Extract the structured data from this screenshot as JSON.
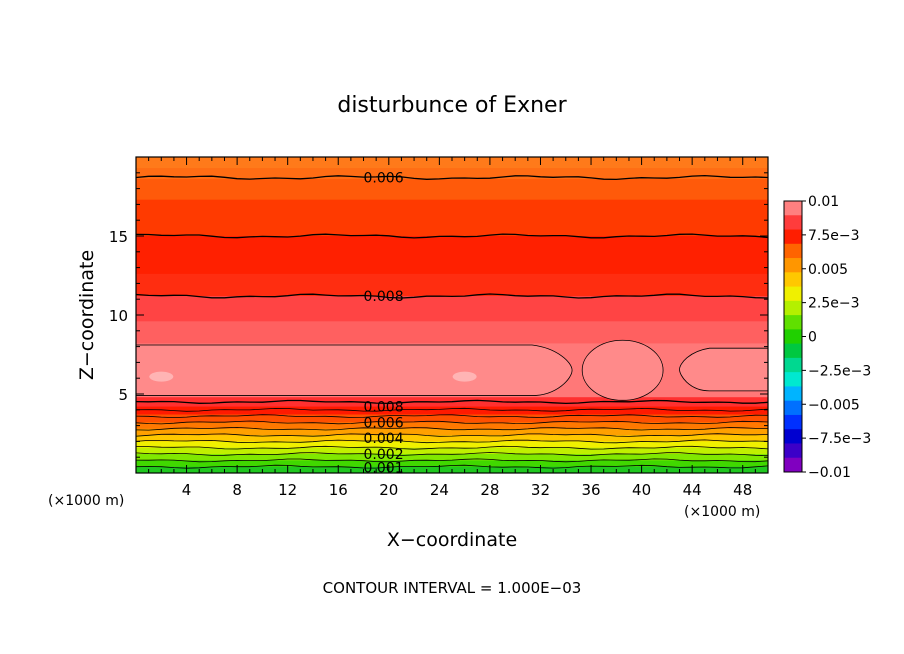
{
  "chart_data": {
    "type": "heatmap",
    "title": "disturbunce of Exner",
    "xlabel": "X−coordinate",
    "ylabel": "Z−coordinate",
    "x_unit": "(×1000 m)",
    "y_unit": "(×1000 m)",
    "xlim": [
      0,
      50
    ],
    "ylim": [
      0,
      20
    ],
    "x_ticks": [
      4,
      8,
      12,
      16,
      20,
      24,
      28,
      32,
      36,
      40,
      44,
      48
    ],
    "y_ticks": [
      5,
      10,
      15
    ],
    "contour_interval_text": "CONTOUR INTERVAL = 1.000E−03",
    "colorbar": {
      "range": [
        -0.01,
        0.01
      ],
      "tick_labels": [
        "0.01",
        "7.5e−3",
        "0.005",
        "2.5e−3",
        "0",
        "−2.5e−3",
        "−0.005",
        "−7.5e−3",
        "−0.01"
      ],
      "colors": [
        "#ff8080",
        "#ff3c3c",
        "#ff1e00",
        "#ff6400",
        "#ff9600",
        "#ffc800",
        "#f0f000",
        "#b4f000",
        "#60e000",
        "#20d000",
        "#00c840",
        "#00d890",
        "#00e8d0",
        "#00b4ff",
        "#0070ff",
        "#0030ff",
        "#0000d0",
        "#3c00c8",
        "#8000c0"
      ]
    },
    "contour_labels": [
      {
        "text": "0.006",
        "x": 18,
        "z": 18.7
      },
      {
        "text": "0.008",
        "x": 18,
        "z": 11.2
      },
      {
        "text": "0.008",
        "x": 18,
        "z": 4.2
      },
      {
        "text": "0.006",
        "x": 18,
        "z": 3.2
      },
      {
        "text": "0.004",
        "x": 18,
        "z": 2.2
      },
      {
        "text": "0.002",
        "x": 18,
        "z": 1.2
      },
      {
        "text": "0.001",
        "x": 18,
        "z": 0.35
      }
    ],
    "bands": [
      {
        "z0": 19.3,
        "z1": 20.0,
        "color": "#ff7a1a"
      },
      {
        "z0": 18.6,
        "z1": 19.3,
        "color": "#ff6d14"
      },
      {
        "z0": 17.3,
        "z1": 18.6,
        "color": "#ff5a0a"
      },
      {
        "z0": 15.0,
        "z1": 17.3,
        "color": "#ff3a00"
      },
      {
        "z0": 12.6,
        "z1": 15.0,
        "color": "#ff2000"
      },
      {
        "z0": 11.2,
        "z1": 12.6,
        "color": "#ff2d10"
      },
      {
        "z0": 9.6,
        "z1": 11.2,
        "color": "#ff4444"
      },
      {
        "z0": 8.2,
        "z1": 9.6,
        "color": "#ff6060"
      },
      {
        "z0": 4.8,
        "z1": 8.2,
        "color": "#ff7878"
      },
      {
        "z0": 4.2,
        "z1": 4.8,
        "color": "#ff3030"
      },
      {
        "z0": 3.7,
        "z1": 4.2,
        "color": "#ff1a00"
      },
      {
        "z0": 3.2,
        "z1": 3.7,
        "color": "#ff5000"
      },
      {
        "z0": 2.8,
        "z1": 3.2,
        "color": "#ff7800"
      },
      {
        "z0": 2.4,
        "z1": 2.8,
        "color": "#ffa000"
      },
      {
        "z0": 2.0,
        "z1": 2.4,
        "color": "#ffc800"
      },
      {
        "z0": 1.6,
        "z1": 2.0,
        "color": "#f0f000"
      },
      {
        "z0": 1.2,
        "z1": 1.6,
        "color": "#c0f000"
      },
      {
        "z0": 0.8,
        "z1": 1.2,
        "color": "#80e800"
      },
      {
        "z0": 0.4,
        "z1": 0.8,
        "color": "#40d800"
      },
      {
        "z0": 0.0,
        "z1": 0.4,
        "color": "#20c820"
      }
    ],
    "contour_levels_z": [
      18.7,
      15.0,
      11.2,
      4.5,
      4.0,
      3.6,
      3.2,
      2.8,
      2.4,
      2.0,
      1.6,
      1.2,
      0.8,
      0.4
    ],
    "max_regions": [
      {
        "shape": "left",
        "x0": 0,
        "x1": 34.5,
        "z0": 4.9,
        "z1": 8.1
      },
      {
        "shape": "bubble",
        "cx": 38.5,
        "cz": 6.5,
        "rx": 3.2,
        "rz": 1.9
      },
      {
        "shape": "right",
        "x0": 43,
        "x1": 50,
        "z0": 5.2,
        "z1": 7.9
      }
    ]
  }
}
